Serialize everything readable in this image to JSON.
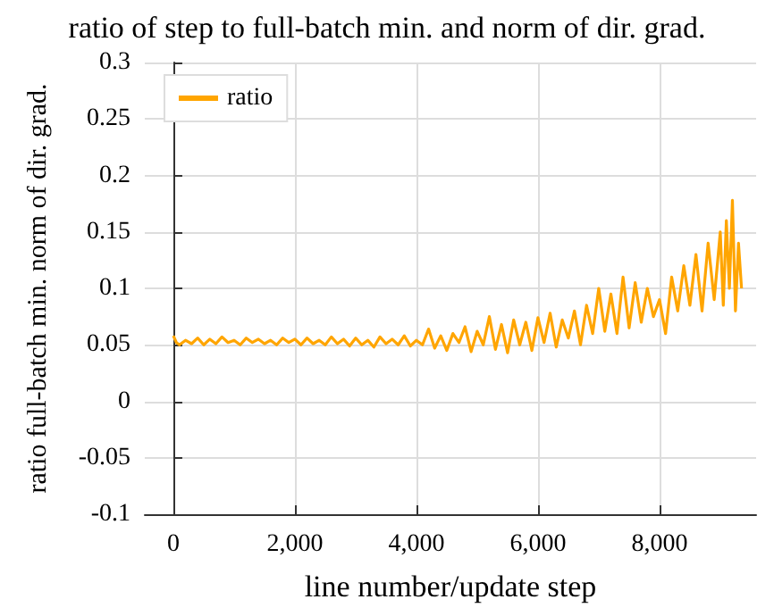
{
  "chart_data": {
    "type": "line",
    "title": "ratio of step to full-batch min. and norm of dir. grad.",
    "xlabel": "line number/update step",
    "ylabel": "ratio full-batch min. norm of dir. grad.",
    "xlim": [
      -470,
      9590
    ],
    "xticks": [
      {
        "value": 0,
        "label": "0"
      },
      {
        "value": 2000,
        "label": "2,000"
      },
      {
        "value": 4000,
        "label": "4,000"
      },
      {
        "value": 6000,
        "label": "6,000"
      },
      {
        "value": 8000,
        "label": "8,000"
      }
    ],
    "ylim": [
      -0.1,
      0.3
    ],
    "yticks": [
      -0.1,
      -0.05,
      0,
      0.05,
      0.1,
      0.15,
      0.2,
      0.25,
      0.3
    ],
    "grid": true,
    "legend": "top left",
    "line_style": "solid",
    "marker": "none",
    "series": [
      {
        "name": "ratio",
        "color": "#ffa500",
        "x": [
          0,
          50,
          100,
          200,
          300,
          400,
          500,
          600,
          700,
          800,
          900,
          1000,
          1100,
          1200,
          1300,
          1400,
          1500,
          1600,
          1700,
          1800,
          1900,
          2000,
          2100,
          2200,
          2300,
          2400,
          2500,
          2600,
          2700,
          2800,
          2900,
          3000,
          3100,
          3200,
          3300,
          3400,
          3500,
          3600,
          3700,
          3800,
          3900,
          4000,
          4100,
          4200,
          4300,
          4400,
          4500,
          4600,
          4700,
          4800,
          4900,
          5000,
          5100,
          5200,
          5300,
          5400,
          5500,
          5600,
          5700,
          5800,
          5900,
          6000,
          6100,
          6200,
          6300,
          6400,
          6500,
          6600,
          6700,
          6800,
          6900,
          7000,
          7100,
          7200,
          7300,
          7400,
          7500,
          7600,
          7700,
          7800,
          7900,
          8000,
          8100,
          8200,
          8300,
          8400,
          8500,
          8600,
          8700,
          8800,
          8900,
          9000,
          9050,
          9100,
          9150,
          9200,
          9250,
          9300,
          9350
        ],
        "values": [
          0.058,
          0.052,
          0.05,
          0.054,
          0.051,
          0.056,
          0.05,
          0.055,
          0.051,
          0.057,
          0.052,
          0.054,
          0.05,
          0.056,
          0.052,
          0.055,
          0.051,
          0.054,
          0.05,
          0.056,
          0.052,
          0.055,
          0.05,
          0.056,
          0.051,
          0.054,
          0.05,
          0.057,
          0.051,
          0.055,
          0.049,
          0.056,
          0.05,
          0.054,
          0.048,
          0.057,
          0.051,
          0.055,
          0.05,
          0.058,
          0.049,
          0.054,
          0.05,
          0.064,
          0.047,
          0.058,
          0.045,
          0.06,
          0.052,
          0.066,
          0.044,
          0.062,
          0.05,
          0.075,
          0.046,
          0.068,
          0.043,
          0.072,
          0.05,
          0.07,
          0.045,
          0.074,
          0.052,
          0.078,
          0.048,
          0.072,
          0.056,
          0.08,
          0.05,
          0.085,
          0.06,
          0.1,
          0.062,
          0.095,
          0.06,
          0.11,
          0.065,
          0.105,
          0.07,
          0.1,
          0.075,
          0.09,
          0.06,
          0.11,
          0.08,
          0.12,
          0.085,
          0.13,
          0.08,
          0.14,
          0.09,
          0.15,
          0.085,
          0.16,
          0.1,
          0.178,
          0.08,
          0.14,
          0.1
        ]
      }
    ]
  }
}
